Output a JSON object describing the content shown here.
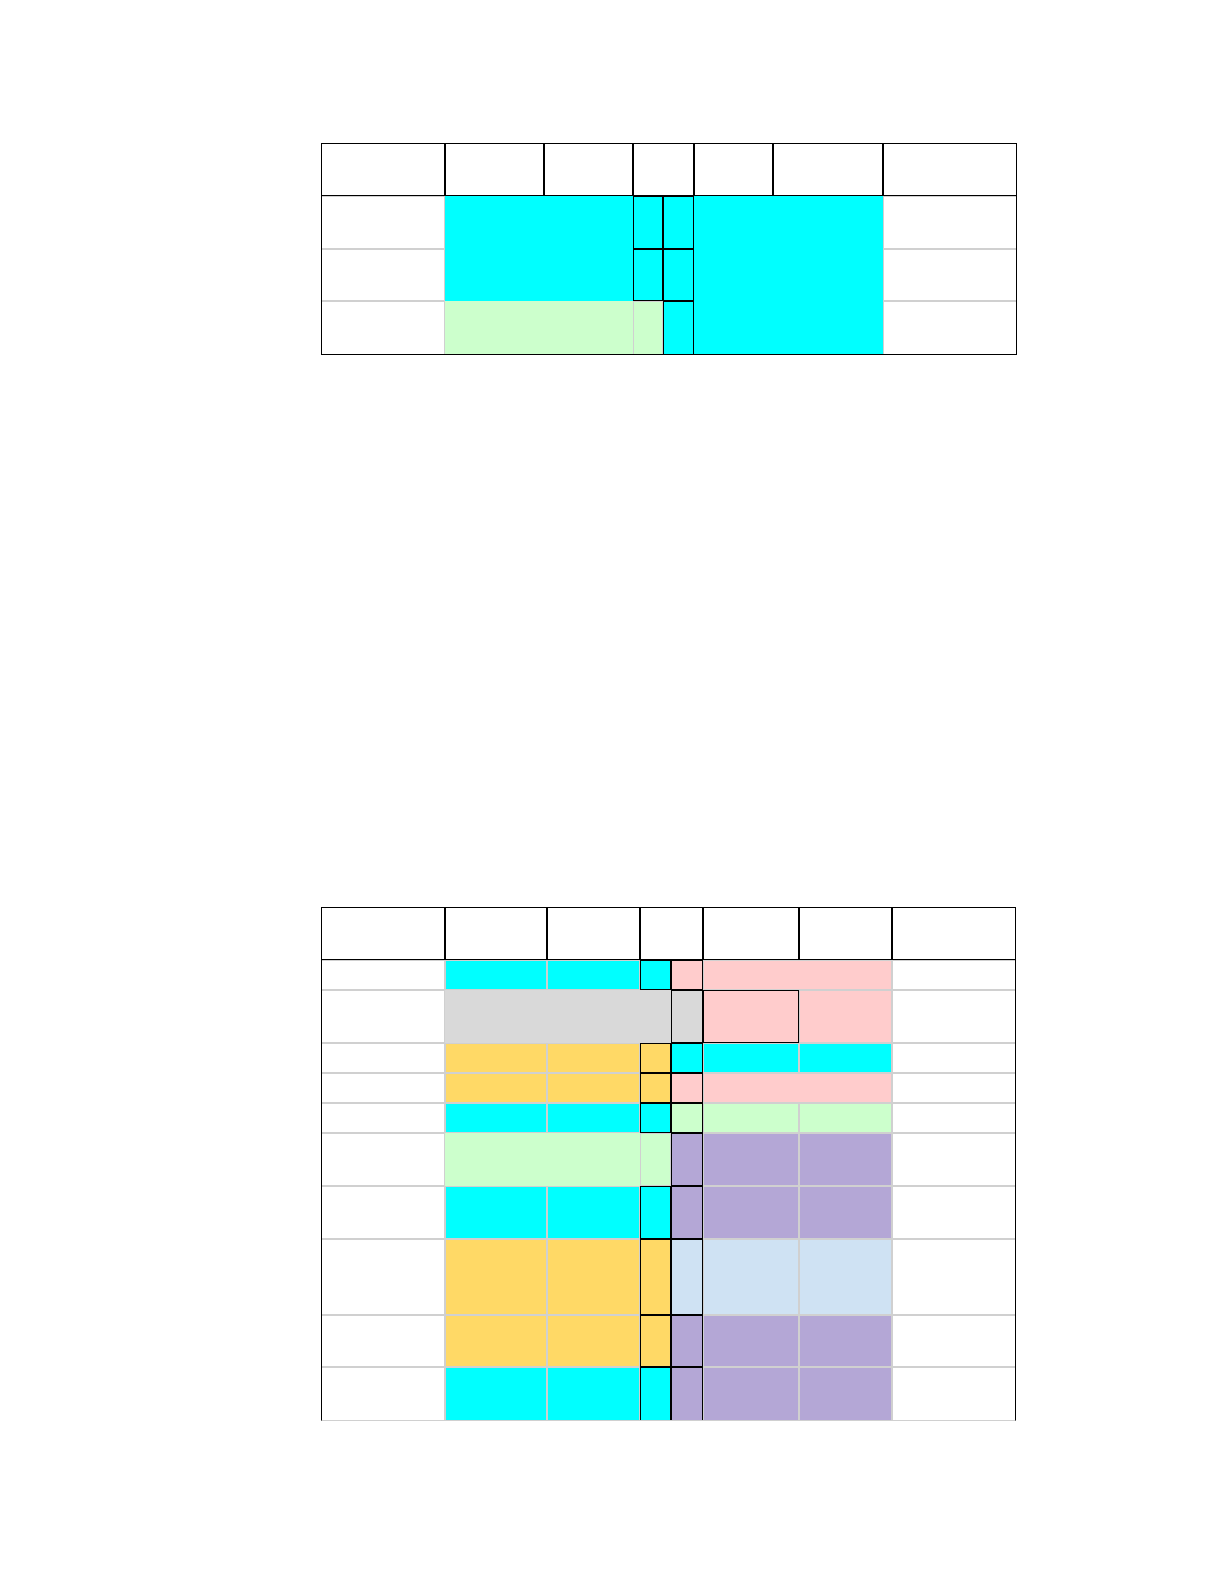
{
  "page": {
    "background": "#ffffff"
  },
  "palette": {
    "cyan": "#00ffff",
    "light_green": "#ccffcc",
    "pink": "#ffcccc",
    "gray": "#d9d9d9",
    "gold": "#ffd966",
    "lavender": "#b4a7d6",
    "light_blue": "#cfe2f3",
    "grid_line": "#d0d0d0",
    "border": "#000000"
  },
  "tables": [
    {
      "name": "upper-color-table",
      "cells": []
    },
    {
      "name": "lower-color-table",
      "cells": []
    }
  ]
}
